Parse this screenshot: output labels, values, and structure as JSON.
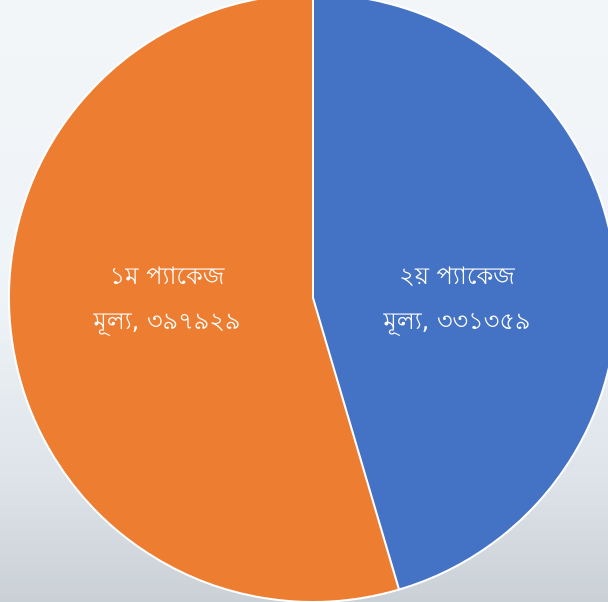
{
  "chart_data": {
    "type": "pie",
    "slices": [
      {
        "label": "২য় প্যাকেজ মূল্য",
        "value_label": "মূল্য, ৩৩১৩৫৯",
        "title_label": "২য় প্যাকেজ",
        "value": 331359,
        "color": "#4472c4"
      },
      {
        "label": "১ম প্যাকেজ মূল্য",
        "value_label": "মূল্য, ৩৯৭৯২৯",
        "title_label": "১ম প্যাকেজ",
        "value": 397929,
        "color": "#ed7d31"
      }
    ],
    "start_angle_deg": 0,
    "direction": "clockwise"
  }
}
